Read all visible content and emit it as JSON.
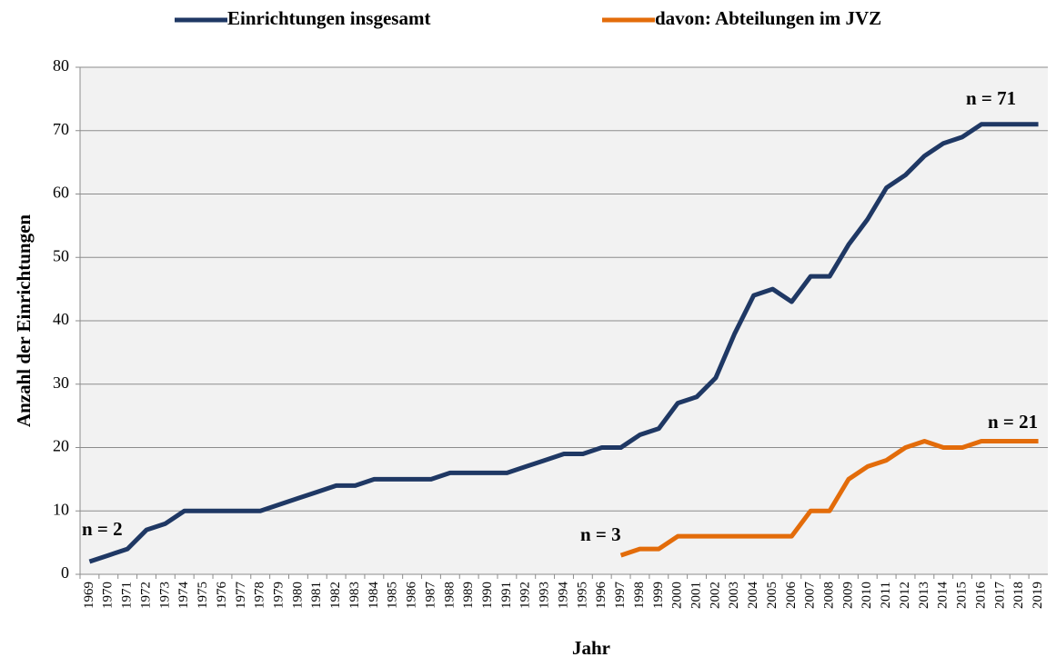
{
  "chart_data": {
    "type": "line",
    "x_label": "Jahr",
    "y_label": "Anzahl der Einrichtungen",
    "categories": [
      "1969",
      "1970",
      "1971",
      "1972",
      "1973",
      "1974",
      "1975",
      "1976",
      "1977",
      "1978",
      "1979",
      "1980",
      "1981",
      "1982",
      "1983",
      "1984",
      "1985",
      "1986",
      "1987",
      "1988",
      "1989",
      "1990",
      "1991",
      "1992",
      "1993",
      "1994",
      "1995",
      "1996",
      "1997",
      "1998",
      "1999",
      "2000",
      "2001",
      "2002",
      "2003",
      "2004",
      "2005",
      "2006",
      "2007",
      "2008",
      "2009",
      "2010",
      "2011",
      "2012",
      "2013",
      "2014",
      "2015",
      "2016",
      "2017",
      "2018",
      "2019"
    ],
    "series": [
      {
        "name": "Einrichtungen insgesamt",
        "color": "#1f3864",
        "values": [
          2,
          3,
          4,
          7,
          8,
          10,
          10,
          10,
          10,
          10,
          11,
          12,
          13,
          14,
          14,
          15,
          15,
          15,
          15,
          16,
          16,
          16,
          16,
          17,
          18,
          19,
          19,
          20,
          20,
          22,
          23,
          27,
          28,
          31,
          38,
          44,
          45,
          43,
          47,
          47,
          52,
          56,
          61,
          63,
          66,
          68,
          69,
          71,
          71,
          71,
          71
        ]
      },
      {
        "name": "davon: Abteilungen im JVZ",
        "color": "#e36c0a",
        "values": [
          null,
          null,
          null,
          null,
          null,
          null,
          null,
          null,
          null,
          null,
          null,
          null,
          null,
          null,
          null,
          null,
          null,
          null,
          null,
          null,
          null,
          null,
          null,
          null,
          null,
          null,
          null,
          null,
          3,
          4,
          4,
          6,
          6,
          6,
          6,
          6,
          6,
          6,
          10,
          10,
          15,
          17,
          18,
          20,
          21,
          20,
          20,
          21,
          21,
          21,
          21
        ]
      }
    ],
    "annotations": [
      "n = 2",
      "n = 3",
      "n = 21",
      "n = 71"
    ],
    "ylim": [
      0,
      80
    ],
    "yticks": [
      0,
      10,
      20,
      30,
      40,
      50,
      60,
      70,
      80
    ],
    "grid": true,
    "legend": "top"
  }
}
